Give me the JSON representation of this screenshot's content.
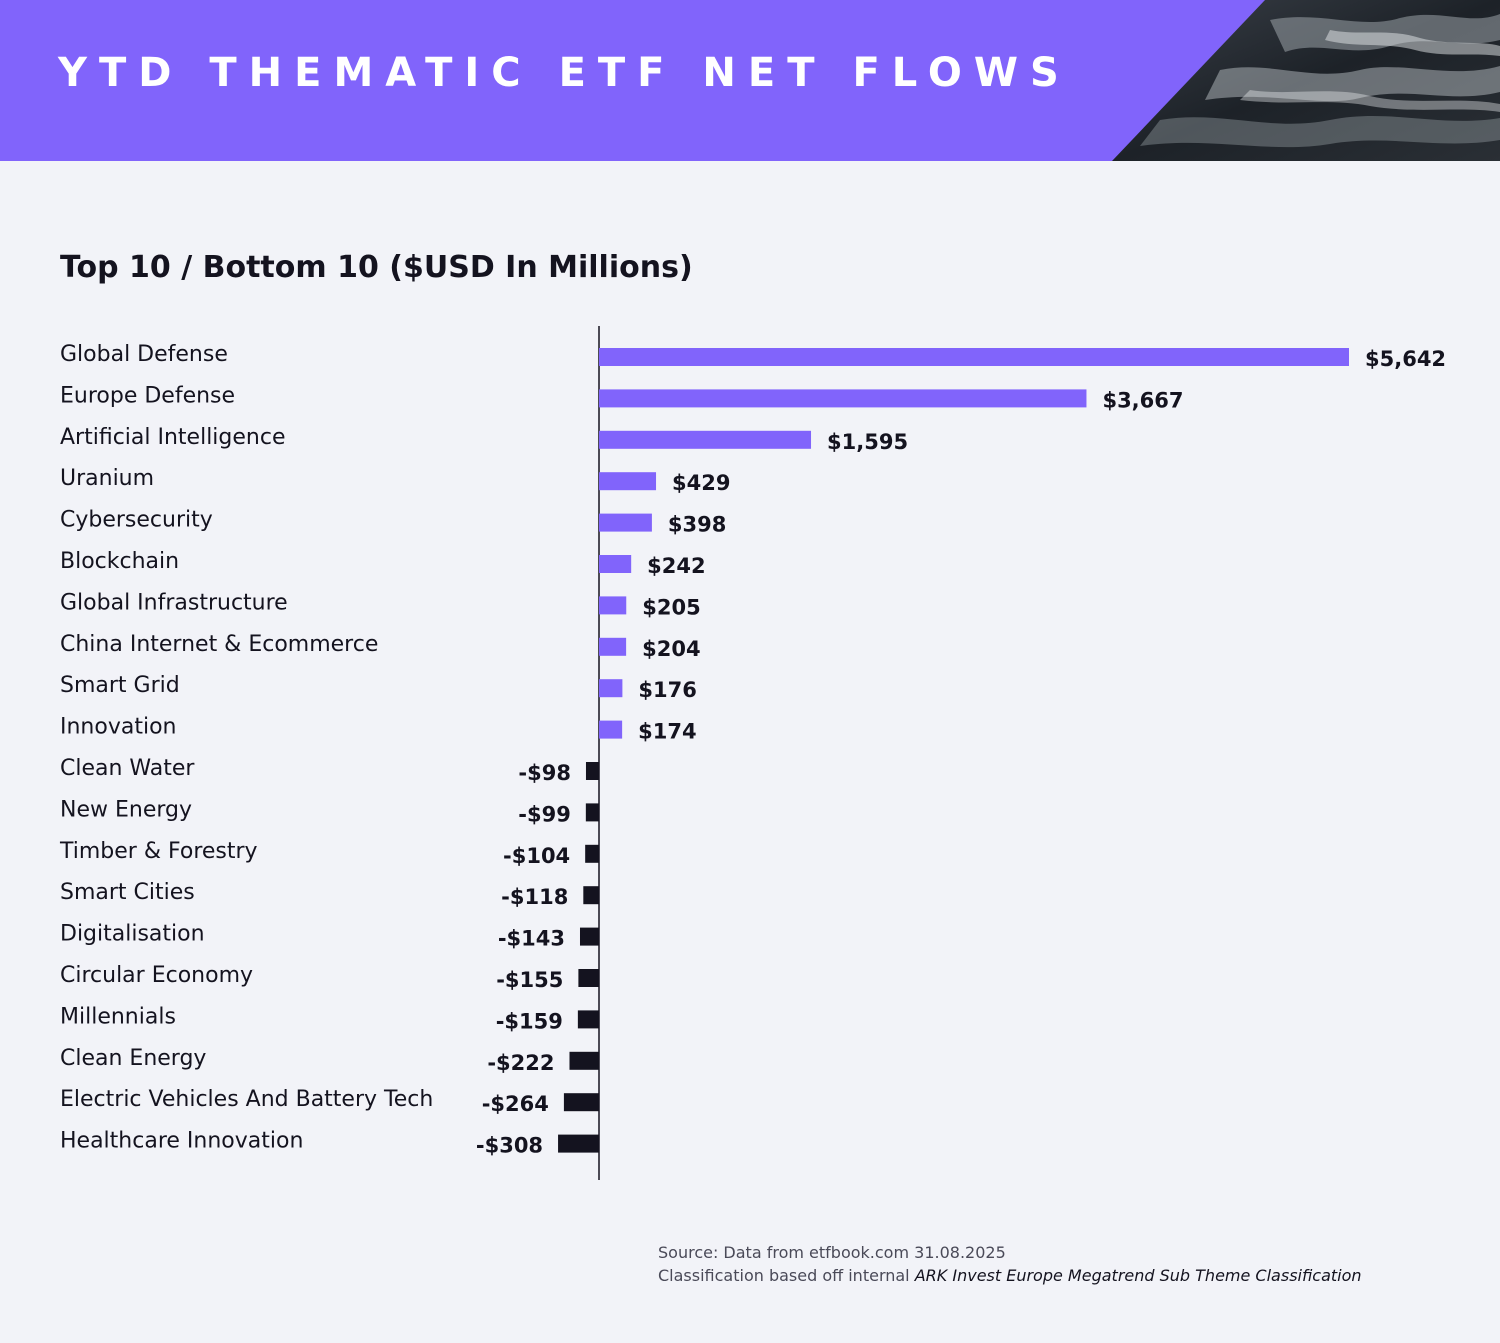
{
  "header": {
    "title": "YTD THEMATIC ETF NET FLOWS"
  },
  "colors": {
    "header_bg": "#8164fb",
    "positive_bar": "#8164fb",
    "negative_bar": "#14131f",
    "background": "#f2f3f8"
  },
  "chart_data": {
    "type": "bar",
    "orientation": "horizontal",
    "title": "Top 10 / Bottom 10 ($USD In Millions)",
    "categories": [
      "Global Defense",
      "Europe Defense",
      "Artificial Intelligence",
      "Uranium",
      "Cybersecurity",
      "Blockchain",
      "Global Infrastructure",
      "China Internet & Ecommerce",
      "Smart Grid",
      "Innovation",
      "Clean Water",
      "New Energy",
      "Timber & Forestry",
      "Smart Cities",
      "Digitalisation",
      "Circular Economy",
      "Millennials",
      "Clean Energy",
      "Electric Vehicles And Battery Tech",
      "Healthcare Innovation"
    ],
    "values": [
      5642,
      3667,
      1595,
      429,
      398,
      242,
      205,
      204,
      176,
      174,
      -98,
      -99,
      -104,
      -118,
      -143,
      -155,
      -159,
      -222,
      -264,
      -308
    ],
    "value_labels": [
      "$5,642",
      "$3,667",
      "$1,595",
      "$429",
      "$398",
      "$242",
      "$205",
      "$204",
      "$176",
      "$174",
      "-$98",
      "-$99",
      "-$104",
      "-$118",
      "-$143",
      "-$155",
      "-$159",
      "-$222",
      "-$264",
      "-$308"
    ],
    "grid": false,
    "legend": "none"
  },
  "source": {
    "line1": "Source: Data from etfbook.com 31.08.2025",
    "line2_prefix": "Classification based off internal ",
    "line2_emphasis": "ARK Invest Europe Megatrend Sub Theme Classification"
  }
}
